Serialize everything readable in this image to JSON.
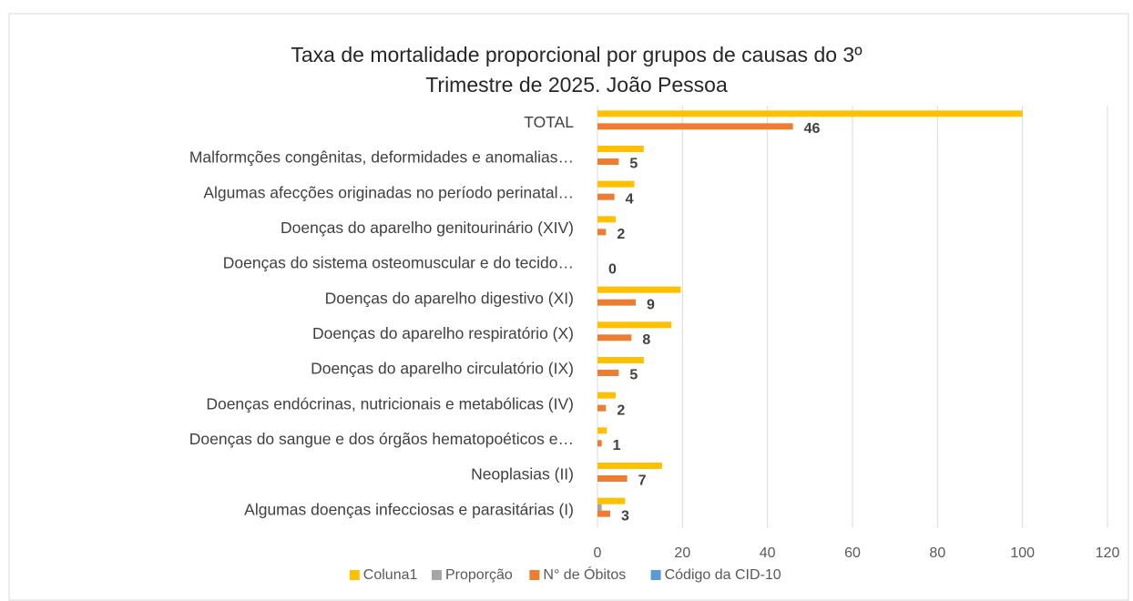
{
  "chart_data": {
    "type": "hbar",
    "title_lines": [
      "Taxa de mortalidade proporcional por grupos de causas do 3º",
      "Trimestre de 2025. João Pessoa"
    ],
    "categories": [
      "Algumas doenças infecciosas e parasitárias (I)",
      "Neoplasias (II)",
      "Doenças do sangue e dos órgãos hematopoéticos e…",
      "Doenças endócrinas, nutricionais e metabólicas (IV)",
      "Doenças do aparelho circulatório (IX)",
      "Doenças do aparelho respiratório (X)",
      "Doenças do aparelho digestivo (XI)",
      "Doenças do sistema osteomuscular e do tecido…",
      "Doenças do aparelho genitourinário (XIV)",
      "Algumas afecções originadas no período perinatal…",
      "Malformções congênitas, deformidades e anomalias…",
      "TOTAL"
    ],
    "series": [
      {
        "name": "Coluna1",
        "color": "#ffc000",
        "values": [
          6.5,
          15.2,
          2.2,
          4.3,
          10.9,
          17.4,
          19.6,
          0,
          4.3,
          8.7,
          10.9,
          100
        ]
      },
      {
        "name": "Proporção",
        "color": "#a5a5a5",
        "values": [
          1,
          null,
          null,
          null,
          null,
          null,
          null,
          null,
          null,
          null,
          null,
          null
        ]
      },
      {
        "name": "N° de Óbitos",
        "color": "#ed7d31",
        "values": [
          3,
          7,
          1,
          2,
          5,
          8,
          9,
          0,
          2,
          4,
          5,
          46
        ],
        "data_labels": true
      },
      {
        "name": "Código da CID-10",
        "color": "#5b9bd5",
        "values": [
          null,
          null,
          null,
          null,
          null,
          null,
          null,
          null,
          null,
          null,
          null,
          null
        ]
      }
    ],
    "xlim": [
      0,
      120
    ],
    "xticks": [
      0,
      20,
      40,
      60,
      80,
      100,
      120
    ],
    "grid": true,
    "legend": "bottom"
  }
}
